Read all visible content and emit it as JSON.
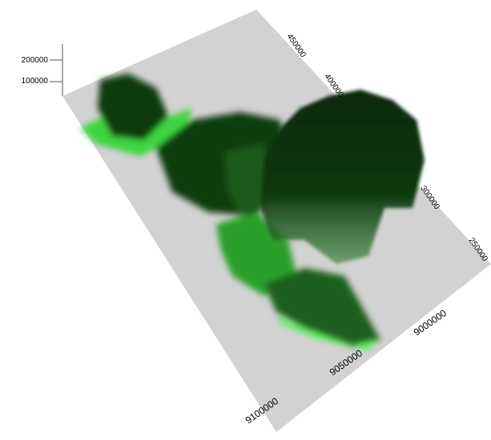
{
  "vertical_axis": {
    "labels": [
      200000,
      100000
    ]
  },
  "top_axis": {
    "labels": [
      450000,
      400000,
      300000,
      250000
    ]
  },
  "bottom_axis": {
    "labels": [
      9100000,
      9050000,
      9000000
    ]
  }
}
